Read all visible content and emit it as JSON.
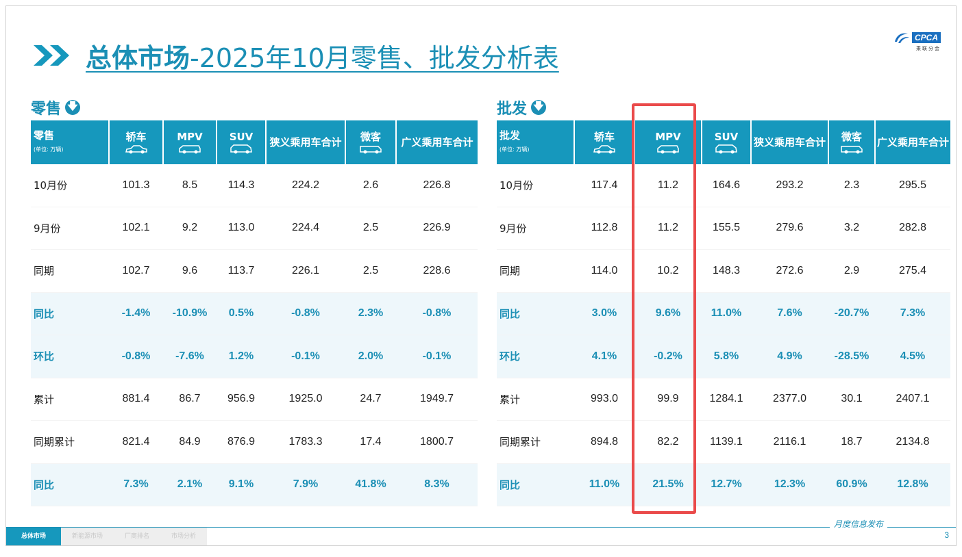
{
  "title": {
    "prefix": "总体市场",
    "suffix": "-2025年10月零售、批发分析表"
  },
  "logo": {
    "badge": "CPCA",
    "sub": "乘联分会"
  },
  "retail": {
    "section_label": "零售",
    "headers": {
      "first": "零售",
      "unit": "(单位: 万辆)",
      "cols": [
        "轿车",
        "MPV",
        "SUV",
        "狭义乘用车合计",
        "微客",
        "广义乘用车合计"
      ]
    },
    "rows": [
      {
        "label": "10月份",
        "values": [
          "101.3",
          "8.5",
          "114.3",
          "224.2",
          "2.6",
          "226.8"
        ]
      },
      {
        "label": "9月份",
        "values": [
          "102.1",
          "9.2",
          "113.0",
          "224.4",
          "2.5",
          "226.9"
        ]
      },
      {
        "label": "同期",
        "values": [
          "102.7",
          "9.6",
          "113.7",
          "226.1",
          "2.5",
          "228.6"
        ]
      },
      {
        "label": "同比",
        "values": [
          "-1.4%",
          "-10.9%",
          "0.5%",
          "-0.8%",
          "2.3%",
          "-0.8%"
        ]
      },
      {
        "label": "环比",
        "values": [
          "-0.8%",
          "-7.6%",
          "1.2%",
          "-0.1%",
          "2.0%",
          "-0.1%"
        ]
      },
      {
        "label": "累计",
        "values": [
          "881.4",
          "86.7",
          "956.9",
          "1925.0",
          "24.7",
          "1949.7"
        ]
      },
      {
        "label": "同期累计",
        "values": [
          "821.4",
          "84.9",
          "876.9",
          "1783.3",
          "17.4",
          "1800.7"
        ]
      },
      {
        "label": "同比",
        "values": [
          "7.3%",
          "2.1%",
          "9.1%",
          "7.9%",
          "41.8%",
          "8.3%"
        ]
      }
    ]
  },
  "wholesale": {
    "section_label": "批发",
    "headers": {
      "first": "批发",
      "unit": "(单位: 万辆)",
      "cols": [
        "轿车",
        "MPV",
        "SUV",
        "狭义乘用车合计",
        "微客",
        "广义乘用车合计"
      ]
    },
    "rows": [
      {
        "label": "10月份",
        "values": [
          "117.4",
          "11.2",
          "164.6",
          "293.2",
          "2.3",
          "295.5"
        ]
      },
      {
        "label": "9月份",
        "values": [
          "112.8",
          "11.2",
          "155.5",
          "279.6",
          "3.2",
          "282.8"
        ]
      },
      {
        "label": "同期",
        "values": [
          "114.0",
          "10.2",
          "148.3",
          "272.6",
          "2.9",
          "275.4"
        ]
      },
      {
        "label": "同比",
        "values": [
          "3.0%",
          "9.6%",
          "11.0%",
          "7.6%",
          "-20.7%",
          "7.3%"
        ]
      },
      {
        "label": "环比",
        "values": [
          "4.1%",
          "-0.2%",
          "5.8%",
          "4.9%",
          "-28.5%",
          "4.5%"
        ]
      },
      {
        "label": "累计",
        "values": [
          "993.0",
          "99.9",
          "1284.1",
          "2377.0",
          "30.1",
          "2407.1"
        ]
      },
      {
        "label": "同期累计",
        "values": [
          "894.8",
          "82.2",
          "1139.1",
          "2116.1",
          "18.7",
          "2134.8"
        ]
      },
      {
        "label": "同比",
        "values": [
          "11.0%",
          "21.5%",
          "12.7%",
          "12.3%",
          "60.9%",
          "12.8%"
        ]
      }
    ]
  },
  "footer": {
    "tabs": [
      "总体市场",
      "新能源市场",
      "厂商排名",
      "市场分析"
    ],
    "caption": "月度信息发布",
    "page": "3"
  },
  "colors": {
    "accent": "#1698bd",
    "highlight_row": "#eef7fb",
    "highlight_box": "#ea4a4a"
  }
}
